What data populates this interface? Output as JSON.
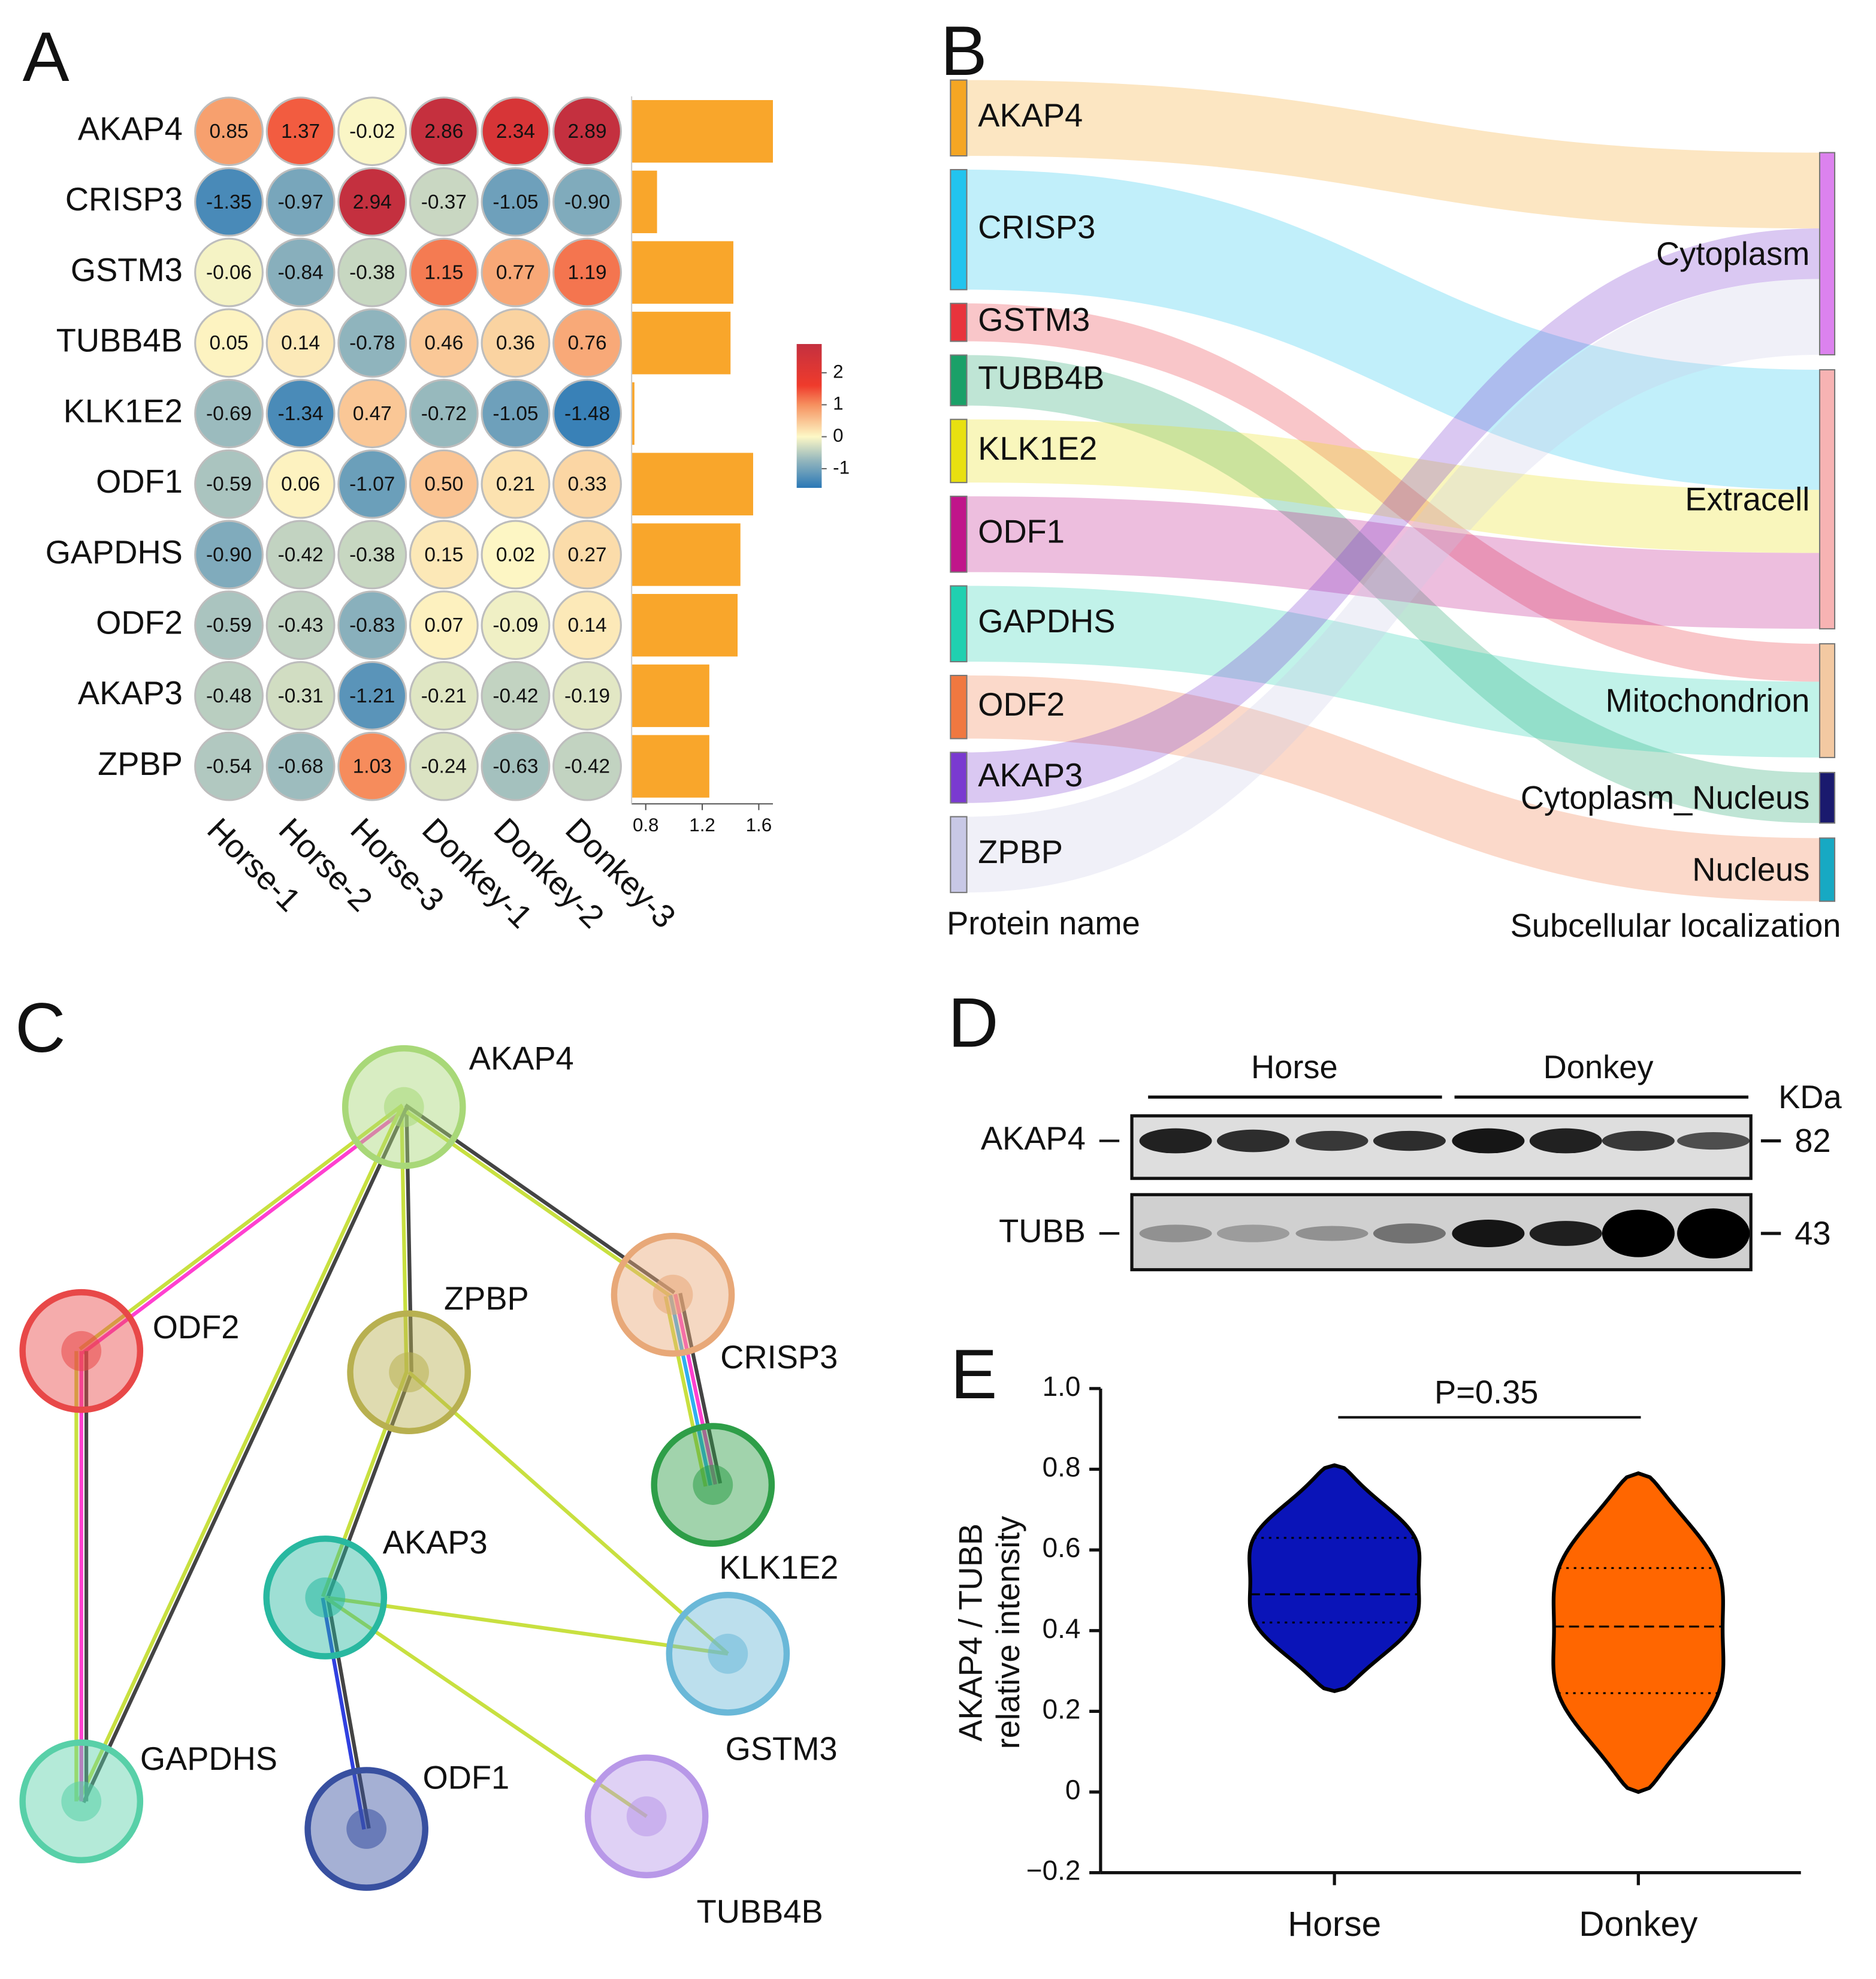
{
  "panel_labels": [
    "A",
    "B",
    "C",
    "D",
    "E"
  ],
  "chart_data": [
    {
      "type": "heatmap",
      "rows": [
        "AKAP4",
        "CRISP3",
        "GSTM3",
        "TUBB4B",
        "KLK1E2",
        "ODF1",
        "GAPDHS",
        "ODF2",
        "AKAP3",
        "ZPBP"
      ],
      "columns": [
        "Horse-1",
        "Horse-2",
        "Horse-3",
        "Donkey-1",
        "Donkey-2",
        "Donkey-3"
      ],
      "values": [
        [
          0.85,
          1.37,
          -0.02,
          2.86,
          2.34,
          2.89
        ],
        [
          -1.35,
          -0.97,
          2.94,
          -0.37,
          -1.05,
          -0.9
        ],
        [
          -0.06,
          -0.84,
          -0.38,
          1.15,
          0.77,
          1.19
        ],
        [
          0.05,
          0.14,
          -0.78,
          0.46,
          0.36,
          0.76
        ],
        [
          -0.69,
          -1.34,
          0.47,
          -0.72,
          -1.05,
          -1.48
        ],
        [
          -0.59,
          0.06,
          -1.07,
          0.5,
          0.21,
          0.33
        ],
        [
          -0.9,
          -0.42,
          -0.38,
          0.15,
          0.02,
          0.27
        ],
        [
          -0.59,
          -0.43,
          -0.83,
          0.07,
          -0.09,
          0.14
        ],
        [
          -0.48,
          -0.31,
          -1.21,
          -0.21,
          -0.42,
          -0.19
        ],
        [
          -0.54,
          -0.68,
          1.03,
          -0.24,
          -0.63,
          -0.42
        ]
      ],
      "value_labels": [
        [
          "0.85",
          "1.37",
          "-0.02",
          "2.86",
          "2.34",
          "2.89"
        ],
        [
          "-1.35",
          "-0.97",
          "2.94",
          "-0.37",
          "-1.05",
          "-0.90"
        ],
        [
          "-0.06",
          "-0.84",
          "-0.38",
          "1.15",
          "0.77",
          "1.19"
        ],
        [
          "0.05",
          "0.14",
          "-0.78",
          "0.46",
          "0.36",
          "0.76"
        ],
        [
          "-0.69",
          "-1.34",
          "0.47",
          "-0.72",
          "-1.05",
          "-1.48"
        ],
        [
          "-0.59",
          "0.06",
          "-1.07",
          "0.50",
          "0.21",
          "0.33"
        ],
        [
          "-0.90",
          "-0.42",
          "-0.38",
          "0.15",
          "0.02",
          "0.27"
        ],
        [
          "-0.59",
          "-0.43",
          "-0.83",
          "0.07",
          "-0.09",
          "0.14"
        ],
        [
          "-0.48",
          "-0.31",
          "-1.21",
          "-0.21",
          "-0.42",
          "-0.19"
        ],
        [
          "-0.54",
          "-0.68",
          "1.03",
          "-0.24",
          "-0.63",
          "-0.42"
        ]
      ],
      "colormap": {
        "stops": [
          -1.6,
          -0.75,
          0,
          1,
          1.6,
          2.9
        ],
        "colors": [
          "#2a78b6",
          "#93b6bd",
          "#fdf8c6",
          "#f6905f",
          "#ef3b2c",
          "#c4303f"
        ]
      },
      "colorbar_lim": [
        -1.6,
        2.9
      ],
      "colorbar_ticks": [
        2,
        1,
        0,
        -1
      ],
      "bar_values": [
        1.7,
        0.88,
        1.42,
        1.4,
        0.72,
        1.56,
        1.47,
        1.45,
        1.25,
        1.25
      ],
      "bar_color": "#f9a62b",
      "bar_xlim": [
        0.7,
        1.7
      ],
      "bar_xticks": [
        0.8,
        1.2,
        1.6
      ]
    },
    {
      "type": "sankey",
      "left_title": "Protein name",
      "right_title": "Subcellular localization",
      "left_nodes": [
        {
          "name": "AKAP4",
          "color": "#f5a623"
        },
        {
          "name": "CRISP3",
          "color": "#22c4ee"
        },
        {
          "name": "GSTM3",
          "color": "#e8333c"
        },
        {
          "name": "TUBB4B",
          "color": "#1aa068"
        },
        {
          "name": "KLK1E2",
          "color": "#e8e010"
        },
        {
          "name": "ODF1",
          "color": "#c0158a"
        },
        {
          "name": "GAPDHS",
          "color": "#20d0b0"
        },
        {
          "name": "ODF2",
          "color": "#f07840"
        },
        {
          "name": "AKAP3",
          "color": "#7a3ad0"
        },
        {
          "name": "ZPBP",
          "color": "#c8c8e6"
        }
      ],
      "right_nodes": [
        {
          "name": "Cytoplasm",
          "color": "#dc82ee"
        },
        {
          "name": "Extracell",
          "color": "#f7b3b3"
        },
        {
          "name": "Mitochondrion",
          "color": "#f3c9a2"
        },
        {
          "name": "Cytoplasm_Nucleus",
          "color": "#1a1a6e"
        },
        {
          "name": "Nucleus",
          "color": "#17a9c3"
        }
      ],
      "links": [
        {
          "source": 0,
          "target": 0,
          "value": 6
        },
        {
          "source": 1,
          "target": 1,
          "value": 9.5
        },
        {
          "source": 2,
          "target": 2,
          "value": 3
        },
        {
          "source": 3,
          "target": 3,
          "value": 4
        },
        {
          "source": 4,
          "target": 1,
          "value": 5
        },
        {
          "source": 5,
          "target": 1,
          "value": 6
        },
        {
          "source": 6,
          "target": 2,
          "value": 6
        },
        {
          "source": 7,
          "target": 4,
          "value": 5
        },
        {
          "source": 8,
          "target": 0,
          "value": 4
        },
        {
          "source": 9,
          "target": 0,
          "value": 6
        }
      ]
    },
    {
      "type": "network",
      "nodes": [
        {
          "name": "AKAP4",
          "color": "#a8d878"
        },
        {
          "name": "ODF2",
          "color": "#e84848"
        },
        {
          "name": "ZPBP",
          "color": "#b8b050"
        },
        {
          "name": "CRISP3",
          "color": "#e8a878"
        },
        {
          "name": "KLK1E2",
          "color": "#2e9e48"
        },
        {
          "name": "AKAP3",
          "color": "#28b8a0"
        },
        {
          "name": "GSTM3",
          "color": "#6ab8d8"
        },
        {
          "name": "GAPDHS",
          "color": "#58d0a8"
        },
        {
          "name": "ODF1",
          "color": "#3850a0"
        },
        {
          "name": "TUBB4B",
          "color": "#b898e8"
        }
      ],
      "edges": [
        {
          "source": 0,
          "target": 1,
          "colors": [
            "#ff40d0",
            "#c8e040"
          ]
        },
        {
          "source": 0,
          "target": 2,
          "colors": [
            "#444444",
            "#c8e040"
          ]
        },
        {
          "source": 0,
          "target": 3,
          "colors": [
            "#444444",
            "#c8e040"
          ]
        },
        {
          "source": 0,
          "target": 7,
          "colors": [
            "#444444",
            "#c8e040"
          ]
        },
        {
          "source": 1,
          "target": 7,
          "colors": [
            "#444444",
            "#ff40d0",
            "#c8e040"
          ]
        },
        {
          "source": 3,
          "target": 4,
          "colors": [
            "#444444",
            "#ff40d0",
            "#30b0f0",
            "#c8e040"
          ]
        },
        {
          "source": 2,
          "target": 5,
          "colors": [
            "#444444",
            "#c8e040"
          ]
        },
        {
          "source": 2,
          "target": 6,
          "colors": [
            "#c8e040"
          ]
        },
        {
          "source": 5,
          "target": 6,
          "colors": [
            "#c8e040"
          ]
        },
        {
          "source": 5,
          "target": 8,
          "colors": [
            "#444444",
            "#3040e0"
          ]
        },
        {
          "source": 5,
          "target": 9,
          "colors": [
            "#c8e040"
          ]
        }
      ]
    },
    {
      "type": "blot",
      "groups": [
        "Horse",
        "Donkey"
      ],
      "rows": [
        "AKAP4",
        "TUBB"
      ],
      "markers": [
        82,
        43
      ],
      "unit": "KDa"
    },
    {
      "type": "violin",
      "ylabel": [
        "AKAP4 / TUBB",
        "relative intensity"
      ],
      "annotation": "P=0.35",
      "categories": [
        "Horse",
        "Donkey"
      ],
      "series": [
        {
          "name": "Horse",
          "color": "#0a14b8",
          "min": 0.25,
          "q1": 0.42,
          "median": 0.49,
          "q3": 0.63,
          "max": 0.81
        },
        {
          "name": "Donkey",
          "color": "#ff6600",
          "min": 0.0,
          "q1": 0.245,
          "median": 0.41,
          "q3": 0.555,
          "max": 0.79
        }
      ],
      "ylim": [
        -0.2,
        1.0
      ],
      "yticks": [
        {
          "value": -0.2,
          "label": "−0.2"
        },
        0,
        0.2,
        0.4,
        0.6,
        0.8,
        {
          "value": 1,
          "label": "1.0"
        }
      ]
    }
  ]
}
